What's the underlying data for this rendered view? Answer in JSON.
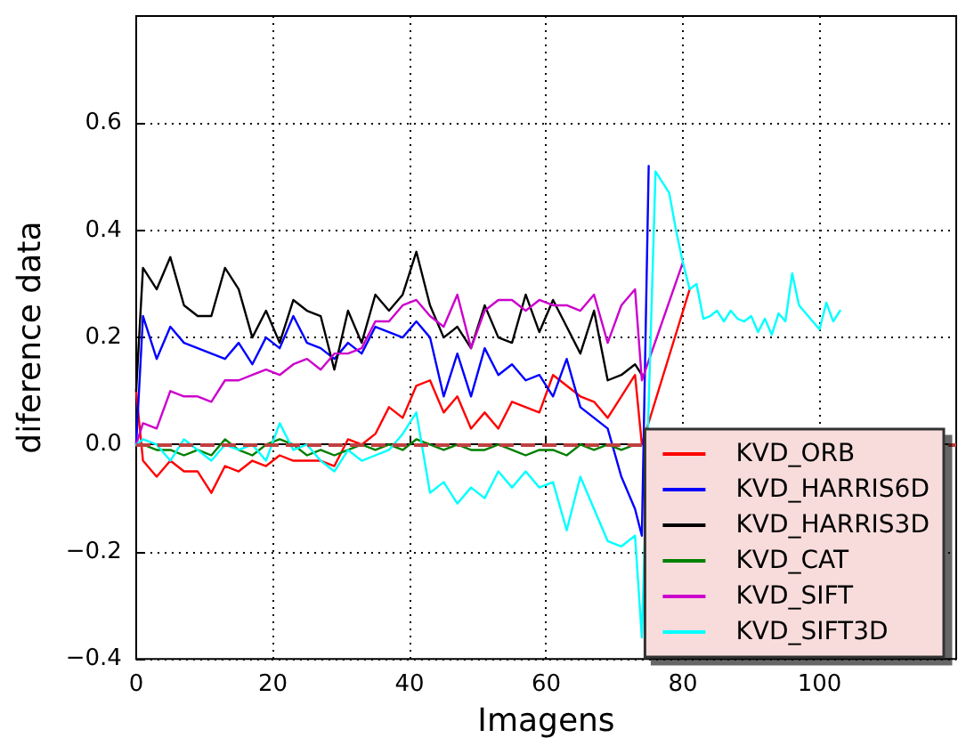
{
  "chart_data": {
    "type": "line",
    "xlabel": "Imagens",
    "ylabel": "diference data",
    "xlim": [
      0,
      120
    ],
    "ylim": [
      -0.4,
      0.8
    ],
    "xticks": [
      0,
      20,
      40,
      60,
      80,
      100
    ],
    "yticks": [
      {
        "value": -0.4,
        "label": "−0.4"
      },
      {
        "value": -0.2,
        "label": "−0.2"
      },
      {
        "value": 0,
        "label": "0.0"
      },
      0.2,
      0.4,
      0.6
    ],
    "grid": true,
    "legend": "bottom right",
    "marker": "none",
    "line_style": "solid",
    "ref_lines": [
      {
        "axis": "y",
        "value": 0,
        "color": "#c04040",
        "line_style": "dashed"
      }
    ],
    "series": [
      {
        "name": "KVD_ORB",
        "color": "#ff0000",
        "x": [
          0,
          1,
          3,
          5,
          7,
          9,
          11,
          13,
          15,
          17,
          19,
          21,
          23,
          25,
          27,
          29,
          31,
          33,
          35,
          37,
          39,
          41,
          43,
          45,
          47,
          49,
          51,
          53,
          55,
          57,
          59,
          61,
          63,
          65,
          67,
          69,
          71,
          73,
          74,
          81
        ],
        "values": [
          0.1,
          -0.03,
          -0.06,
          -0.03,
          -0.05,
          -0.05,
          -0.09,
          -0.04,
          -0.05,
          -0.03,
          -0.04,
          -0.02,
          -0.03,
          -0.03,
          -0.03,
          -0.04,
          0.01,
          0.0,
          0.02,
          0.07,
          0.05,
          0.11,
          0.12,
          0.06,
          0.09,
          0.03,
          0.06,
          0.03,
          0.08,
          0.07,
          0.06,
          0.13,
          0.11,
          0.09,
          0.08,
          0.05,
          0.09,
          0.13,
          0.0,
          0.29
        ]
      },
      {
        "name": "KVD_HARRIS6D",
        "color": "#0000ff",
        "x": [
          0,
          1,
          3,
          5,
          7,
          9,
          11,
          13,
          15,
          17,
          19,
          21,
          23,
          25,
          27,
          29,
          31,
          33,
          35,
          37,
          39,
          41,
          43,
          45,
          47,
          49,
          51,
          53,
          55,
          57,
          59,
          61,
          63,
          65,
          67,
          69,
          71,
          73,
          74,
          75
        ],
        "values": [
          0.0,
          0.24,
          0.16,
          0.22,
          0.19,
          0.18,
          0.17,
          0.16,
          0.19,
          0.15,
          0.2,
          0.18,
          0.24,
          0.19,
          0.18,
          0.16,
          0.19,
          0.17,
          0.22,
          0.21,
          0.2,
          0.23,
          0.2,
          0.09,
          0.17,
          0.09,
          0.18,
          0.13,
          0.15,
          0.12,
          0.13,
          0.09,
          0.16,
          0.07,
          0.05,
          0.03,
          -0.06,
          -0.12,
          -0.17,
          0.52
        ]
      },
      {
        "name": "KVD_HARRIS3D",
        "color": "#000000",
        "x": [
          0,
          1,
          3,
          5,
          7,
          9,
          11,
          13,
          15,
          17,
          19,
          21,
          23,
          25,
          27,
          29,
          31,
          33,
          35,
          37,
          39,
          41,
          43,
          45,
          47,
          49,
          51,
          53,
          55,
          57,
          59,
          61,
          63,
          65,
          67,
          69,
          71,
          73,
          74
        ],
        "values": [
          0.1,
          0.33,
          0.29,
          0.35,
          0.26,
          0.24,
          0.24,
          0.33,
          0.29,
          0.2,
          0.25,
          0.19,
          0.27,
          0.25,
          0.24,
          0.14,
          0.25,
          0.19,
          0.28,
          0.25,
          0.28,
          0.36,
          0.26,
          0.2,
          0.22,
          0.18,
          0.26,
          0.2,
          0.19,
          0.28,
          0.21,
          0.27,
          0.22,
          0.17,
          0.25,
          0.12,
          0.13,
          0.15,
          0.13
        ]
      },
      {
        "name": "KVD_CAT",
        "color": "#008000",
        "x": [
          0,
          1,
          3,
          5,
          7,
          9,
          11,
          13,
          15,
          17,
          19,
          21,
          23,
          25,
          27,
          29,
          31,
          33,
          35,
          37,
          39,
          41,
          43,
          45,
          47,
          49,
          51,
          53,
          55,
          57,
          59,
          61,
          63,
          65,
          67,
          69,
          71,
          73
        ],
        "values": [
          0.0,
          0.0,
          -0.01,
          -0.01,
          -0.02,
          -0.01,
          -0.02,
          0.01,
          -0.01,
          -0.02,
          0.0,
          0.01,
          0.0,
          -0.02,
          -0.01,
          -0.02,
          -0.01,
          0.0,
          -0.01,
          0.0,
          -0.01,
          0.01,
          0.0,
          -0.01,
          0.0,
          -0.01,
          -0.01,
          0.0,
          -0.01,
          -0.02,
          -0.01,
          -0.01,
          -0.02,
          0.0,
          -0.01,
          0.0,
          -0.01,
          0.0
        ]
      },
      {
        "name": "KVD_SIFT",
        "color": "#cc00cc",
        "x": [
          0,
          1,
          3,
          5,
          7,
          9,
          11,
          13,
          15,
          17,
          19,
          21,
          23,
          25,
          27,
          29,
          31,
          33,
          35,
          37,
          39,
          41,
          43,
          45,
          47,
          49,
          51,
          53,
          55,
          57,
          59,
          61,
          63,
          65,
          67,
          69,
          71,
          73,
          74,
          80
        ],
        "values": [
          0.0,
          0.04,
          0.03,
          0.1,
          0.09,
          0.09,
          0.08,
          0.12,
          0.12,
          0.13,
          0.14,
          0.13,
          0.15,
          0.16,
          0.14,
          0.17,
          0.17,
          0.18,
          0.23,
          0.23,
          0.26,
          0.27,
          0.24,
          0.22,
          0.28,
          0.18,
          0.25,
          0.27,
          0.27,
          0.25,
          0.27,
          0.26,
          0.26,
          0.25,
          0.28,
          0.19,
          0.26,
          0.29,
          0.12,
          0.34
        ]
      },
      {
        "name": "KVD_SIFT3D",
        "color": "#00ffff",
        "x": [
          0,
          1,
          3,
          5,
          7,
          9,
          11,
          13,
          15,
          17,
          19,
          21,
          23,
          25,
          27,
          29,
          31,
          33,
          35,
          37,
          39,
          41,
          43,
          45,
          47,
          49,
          51,
          53,
          55,
          57,
          59,
          61,
          63,
          65,
          67,
          69,
          71,
          73,
          74,
          76,
          77,
          78,
          79,
          80,
          81,
          82,
          83,
          84,
          85,
          86,
          87,
          88,
          89,
          90,
          91,
          92,
          93,
          94,
          95,
          96,
          97,
          98,
          99,
          100,
          101,
          102,
          103
        ],
        "values": [
          0.0,
          0.01,
          0.0,
          -0.03,
          0.01,
          -0.01,
          -0.03,
          0.0,
          -0.01,
          0.0,
          -0.03,
          0.04,
          -0.01,
          0.0,
          -0.03,
          -0.05,
          -0.01,
          -0.03,
          -0.02,
          -0.01,
          0.02,
          0.06,
          -0.09,
          -0.07,
          -0.11,
          -0.08,
          -0.1,
          -0.05,
          -0.08,
          -0.05,
          -0.08,
          -0.07,
          -0.16,
          -0.06,
          -0.12,
          -0.18,
          -0.19,
          -0.17,
          -0.36,
          0.51,
          0.49,
          0.47,
          0.4,
          0.34,
          0.29,
          0.3,
          0.235,
          0.24,
          0.25,
          0.23,
          0.25,
          0.235,
          0.23,
          0.24,
          0.21,
          0.235,
          0.205,
          0.245,
          0.23,
          0.32,
          0.26,
          0.245,
          0.23,
          0.215,
          0.265,
          0.23,
          0.25
        ]
      }
    ]
  }
}
